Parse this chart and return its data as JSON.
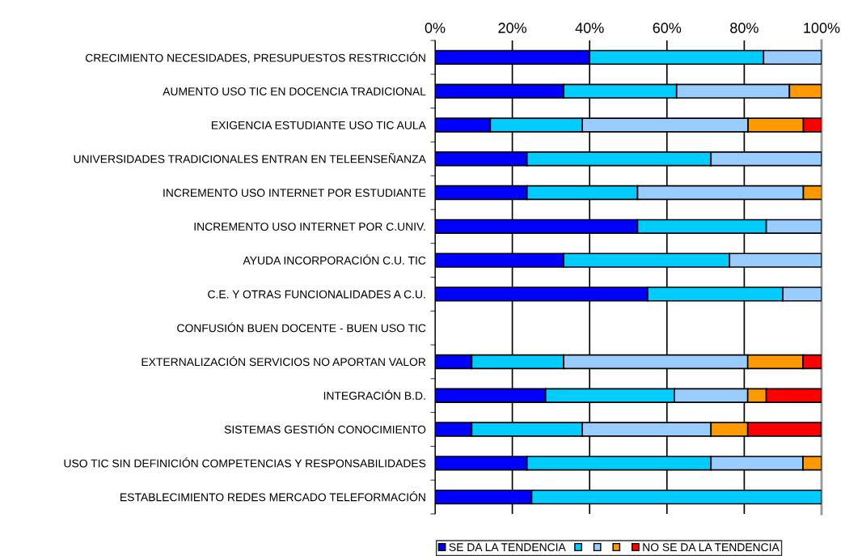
{
  "chart_data": {
    "type": "bar",
    "orientation": "horizontal",
    "stacked": true,
    "categories": [
      "CRECIMIENTO NECESIDADES, PRESUPUESTOS RESTRICCIÓN",
      "AUMENTO USO TIC EN DOCENCIA TRADICIONAL",
      "EXIGENCIA ESTUDIANTE USO TIC AULA",
      "UNIVERSIDADES TRADICIONALES ENTRAN EN TELEENSEÑANZA",
      "INCREMENTO USO INTERNET POR ESTUDIANTE",
      "INCREMENTO USO INTERNET POR C.UNIV.",
      "AYUDA INCORPORACIÓN C.U. TIC",
      "C.E. Y OTRAS FUNCIONALIDADES A C.U.",
      "CONFUSIÓN BUEN DOCENTE - BUEN USO TIC",
      "EXTERNALIZACIÓN SERVICIOS NO APORTAN VALOR",
      "INTEGRACIÓN B.D.",
      "SISTEMAS GESTIÓN CONOCIMIENTO",
      "USO TIC SIN DEFINICIÓN COMPETENCIAS Y RESPONSABILIDADES",
      "ESTABLECIMIENTO REDES MERCADO TELEFORMACIÓN"
    ],
    "series": [
      {
        "name": "SE DA LA TENDENCIA",
        "color": "#0000ff",
        "values": [
          40,
          33.3,
          14.3,
          23.8,
          23.8,
          52.4,
          33.3,
          55,
          null,
          9.5,
          28.6,
          9.5,
          23.8,
          25
        ]
      },
      {
        "color": "#00ccff",
        "values": [
          45,
          29.2,
          23.8,
          47.6,
          28.6,
          33.3,
          42.9,
          35,
          null,
          23.8,
          33.3,
          28.6,
          47.6,
          75
        ]
      },
      {
        "color": "#99ccff",
        "values": [
          15,
          29.2,
          42.9,
          28.6,
          42.9,
          14.3,
          23.8,
          10,
          null,
          47.6,
          19.0,
          33.3,
          23.8,
          null
        ]
      },
      {
        "color": "#ff9900",
        "values": [
          null,
          8.3,
          14.3,
          null,
          4.8,
          null,
          null,
          null,
          null,
          14.3,
          4.8,
          9.5,
          4.8,
          null
        ]
      },
      {
        "name": "NO SE DA LA TENDENCIA",
        "color": "#ff0000",
        "values": [
          null,
          null,
          4.8,
          null,
          null,
          null,
          null,
          null,
          null,
          4.8,
          14.3,
          19.0,
          null,
          null
        ]
      }
    ],
    "xlim": [
      0,
      100
    ],
    "xticks": [
      {
        "value": 0,
        "label": "0%"
      },
      {
        "value": 20,
        "label": "20%"
      },
      {
        "value": 40,
        "label": "40%"
      },
      {
        "value": 60,
        "label": "60%"
      },
      {
        "value": 80,
        "label": "80%"
      },
      {
        "value": 100,
        "label": "100%"
      }
    ],
    "grid": "x",
    "legend": "bottom"
  }
}
